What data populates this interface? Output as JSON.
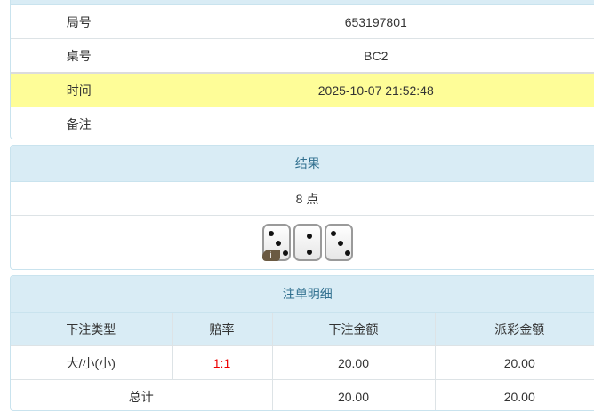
{
  "info": {
    "rows": [
      {
        "label": "局号",
        "value": "653197801"
      },
      {
        "label": "桌号",
        "value": "BC2"
      },
      {
        "label": "时间",
        "value": "2025-10-07 21:52:48",
        "highlight": "#fefd98"
      },
      {
        "label": "备注",
        "value": ""
      }
    ]
  },
  "result": {
    "title": "结果",
    "points": "8 点",
    "dice": [
      3,
      2,
      3
    ],
    "info_icon": "i"
  },
  "bets": {
    "title": "注单明细",
    "headers": [
      "下注类型",
      "赔率",
      "下注金额",
      "派彩金额"
    ],
    "rows": [
      {
        "type": "大/小(小)",
        "odds": "1:1",
        "amount": "20.00",
        "payout": "20.00"
      }
    ],
    "total": {
      "label": "总计",
      "amount": "20.00",
      "payout": "20.00"
    }
  }
}
